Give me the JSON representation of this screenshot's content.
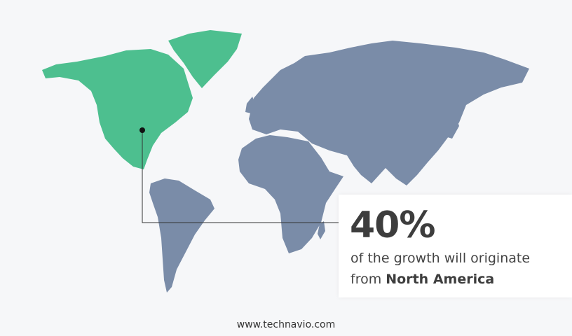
{
  "colors": {
    "highlight_region": "#4dbf8f",
    "other_regions": "#7a8ca8",
    "background": "#f6f7f9"
  },
  "callout": {
    "percent": "40%",
    "line1": "of the growth will originate",
    "line2_prefix": "from ",
    "region": "North America"
  },
  "footer": {
    "website": "www.technavio.com"
  }
}
